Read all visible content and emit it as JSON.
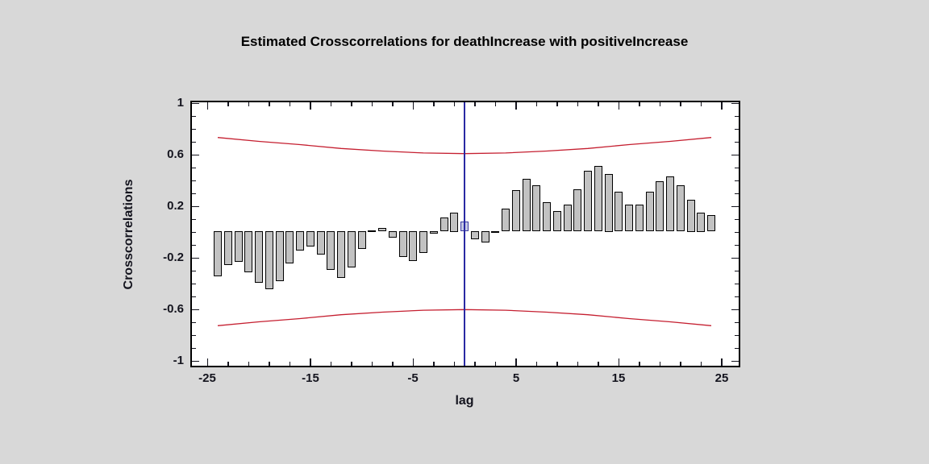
{
  "chart_data": {
    "type": "bar",
    "title": "Estimated Crosscorrelations for deathIncrease with positiveIncrease",
    "xlabel": "lag",
    "ylabel": "Crosscorrelations",
    "ylim": [
      -1,
      1
    ],
    "xlim": [
      -26.5,
      26.7
    ],
    "grid": false,
    "lags": [
      -24,
      -23,
      -22,
      -21,
      -20,
      -19,
      -18,
      -17,
      -16,
      -15,
      -14,
      -13,
      -12,
      -11,
      -10,
      -9,
      -8,
      -7,
      -6,
      -5,
      -4,
      -3,
      -2,
      -1,
      0,
      1,
      2,
      3,
      4,
      5,
      6,
      7,
      8,
      9,
      10,
      11,
      12,
      13,
      14,
      15,
      16,
      17,
      18,
      19,
      20,
      21,
      22,
      23,
      24
    ],
    "values": [
      -0.35,
      -0.26,
      -0.24,
      -0.32,
      -0.4,
      -0.45,
      -0.39,
      -0.25,
      -0.15,
      -0.12,
      -0.18,
      -0.3,
      -0.36,
      -0.28,
      -0.14,
      0.01,
      0.03,
      -0.05,
      -0.2,
      -0.23,
      -0.17,
      -0.02,
      0.11,
      0.15,
      0.08,
      -0.06,
      -0.09,
      0.005,
      0.18,
      0.32,
      0.41,
      0.36,
      0.23,
      0.16,
      0.21,
      0.33,
      0.47,
      0.51,
      0.45,
      0.31,
      0.21,
      0.21,
      0.31,
      0.39,
      0.43,
      0.36,
      0.25,
      0.15,
      0.13
    ],
    "highlight_lag": 0,
    "confidence_band": {
      "lags": [
        -24,
        -20,
        -16,
        -12,
        -8,
        -4,
        0,
        4,
        8,
        12,
        16,
        20,
        24
      ],
      "upper": [
        0.73,
        0.7,
        0.675,
        0.645,
        0.625,
        0.61,
        0.605,
        0.61,
        0.625,
        0.645,
        0.675,
        0.7,
        0.73
      ],
      "lower": [
        -0.73,
        -0.7,
        -0.675,
        -0.645,
        -0.625,
        -0.61,
        -0.605,
        -0.61,
        -0.625,
        -0.645,
        -0.675,
        -0.7,
        -0.73
      ]
    },
    "y_ticks_major": [
      {
        "label": "1",
        "v": 1
      },
      {
        "label": "0.6",
        "v": 0.6
      },
      {
        "label": "0.2",
        "v": 0.2
      },
      {
        "label": "-0.2",
        "v": -0.2
      },
      {
        "label": "-0.6",
        "v": -0.6
      },
      {
        "label": "-1",
        "v": -1
      }
    ],
    "y_minor_step": 0.1,
    "x_ticks_major": [
      {
        "label": "-25",
        "v": -25
      },
      {
        "label": "-15",
        "v": -15
      },
      {
        "label": "-5",
        "v": -5
      },
      {
        "label": "5",
        "v": 5
      },
      {
        "label": "15",
        "v": 15
      },
      {
        "label": "25",
        "v": 25
      }
    ],
    "x_minor_lags": [
      -25,
      -23,
      -21,
      -19,
      -17,
      -15,
      -13,
      -11,
      -9,
      -7,
      -5,
      -3,
      -1,
      1,
      3,
      5,
      7,
      9,
      11,
      13,
      15,
      17,
      19,
      21,
      23,
      25
    ],
    "legend": "none",
    "colors": {
      "background": "#d8d8d8",
      "plot_background": "#ffffff",
      "bar_fill": "#c2c2c2",
      "bar_border": "#000000",
      "highlight_fill": "#c6cae4",
      "highlight_border": "#3a3aa0",
      "confidence_line": "#c51f30",
      "zero_lag_line": "#2929a3",
      "axis": "#000000",
      "text": "#14141e"
    }
  }
}
